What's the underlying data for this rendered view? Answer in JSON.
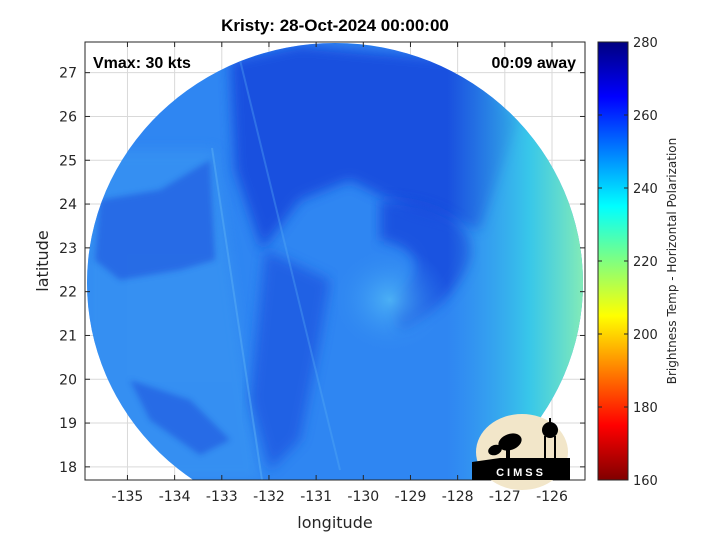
{
  "chart_data": {
    "type": "heatmap",
    "title": "Kristy: 28-Oct-2024 00:00:00",
    "xlabel": "longitude",
    "ylabel": "latitude",
    "xlim": [
      -135.9,
      -125.3
    ],
    "ylim": [
      17.7,
      27.7
    ],
    "x_ticks": [
      -135,
      -134,
      -133,
      -132,
      -131,
      -130,
      -129,
      -128,
      -127,
      -126
    ],
    "y_ticks": [
      18,
      19,
      20,
      21,
      22,
      23,
      24,
      25,
      26,
      27
    ],
    "grid": true,
    "annotations": {
      "top_left": "Vmax: 30 kts",
      "top_right": "00:09 away"
    },
    "colorbar": {
      "label": "Brightness Temp - Horizontal Polarization",
      "range": [
        160,
        280
      ],
      "ticks": [
        160,
        180,
        200,
        220,
        240,
        260,
        280
      ],
      "colormap": "jet"
    }
  },
  "logo": {
    "text": "CIMSS",
    "background": "#f2e6c9",
    "shape_color": "#000000"
  },
  "colors": {
    "field_base": "#2f86f2",
    "field_dark": "#0f3fd8",
    "field_cold_edge": "#7fe0c8",
    "grid": "#d9d9d9",
    "axes": "#262626"
  }
}
